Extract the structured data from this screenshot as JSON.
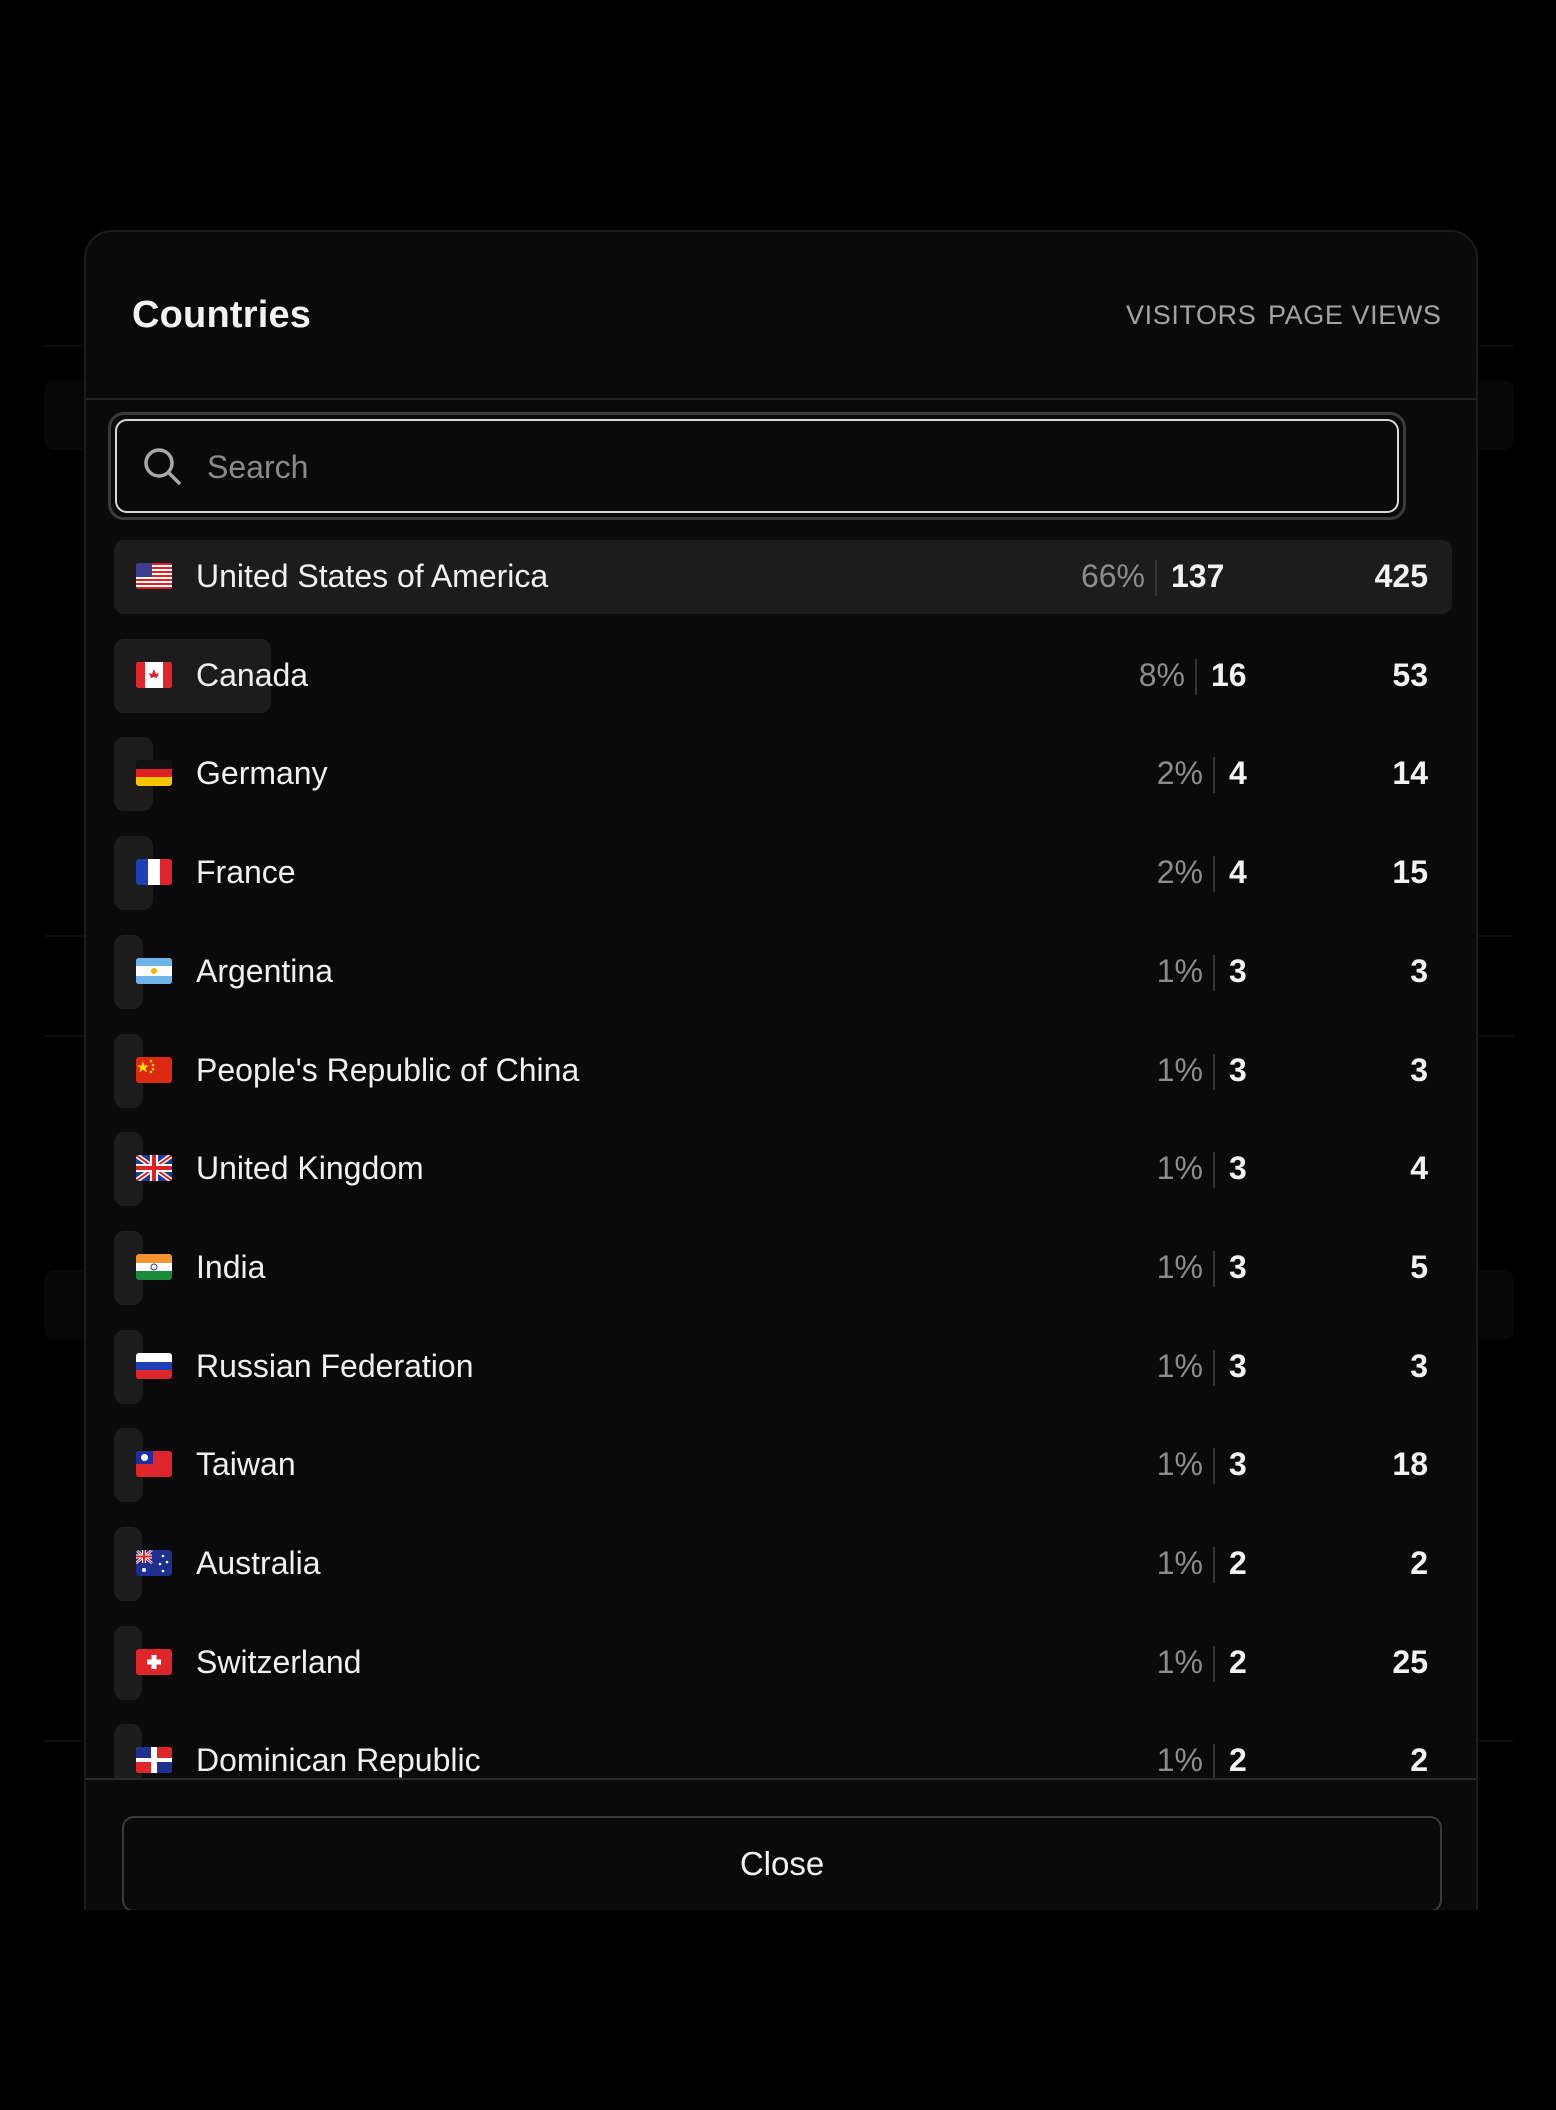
{
  "modal": {
    "title": "Countries",
    "columns": {
      "visitors": "VISITORS",
      "page_views": "PAGE VIEWS"
    },
    "search": {
      "placeholder": "Search",
      "value": ""
    },
    "close_label": "Close"
  },
  "rows": [
    {
      "country": "United States of America",
      "flag": "us-flag-icon",
      "pct": "66%",
      "visitors": "137",
      "page_views": "425",
      "share": 1.0
    },
    {
      "country": "Canada",
      "flag": "ca-flag-icon",
      "pct": "8%",
      "visitors": "16",
      "page_views": "53",
      "share": 0.117
    },
    {
      "country": "Germany",
      "flag": "de-flag-icon",
      "pct": "2%",
      "visitors": "4",
      "page_views": "14",
      "share": 0.029
    },
    {
      "country": "France",
      "flag": "fr-flag-icon",
      "pct": "2%",
      "visitors": "4",
      "page_views": "15",
      "share": 0.029
    },
    {
      "country": "Argentina",
      "flag": "ar-flag-icon",
      "pct": "1%",
      "visitors": "3",
      "page_views": "3",
      "share": 0.022
    },
    {
      "country": "People's Republic of China",
      "flag": "cn-flag-icon",
      "pct": "1%",
      "visitors": "3",
      "page_views": "3",
      "share": 0.022
    },
    {
      "country": "United Kingdom",
      "flag": "gb-flag-icon",
      "pct": "1%",
      "visitors": "3",
      "page_views": "4",
      "share": 0.022
    },
    {
      "country": "India",
      "flag": "in-flag-icon",
      "pct": "1%",
      "visitors": "3",
      "page_views": "5",
      "share": 0.022
    },
    {
      "country": "Russian Federation",
      "flag": "ru-flag-icon",
      "pct": "1%",
      "visitors": "3",
      "page_views": "3",
      "share": 0.022
    },
    {
      "country": "Taiwan",
      "flag": "tw-flag-icon",
      "pct": "1%",
      "visitors": "3",
      "page_views": "18",
      "share": 0.022
    },
    {
      "country": "Australia",
      "flag": "au-flag-icon",
      "pct": "1%",
      "visitors": "2",
      "page_views": "2",
      "share": 0.015
    },
    {
      "country": "Switzerland",
      "flag": "ch-flag-icon",
      "pct": "1%",
      "visitors": "2",
      "page_views": "25",
      "share": 0.015
    },
    {
      "country": "Dominican Republic",
      "flag": "do-flag-icon",
      "pct": "1%",
      "visitors": "2",
      "page_views": "2",
      "share": 0.015
    }
  ]
}
